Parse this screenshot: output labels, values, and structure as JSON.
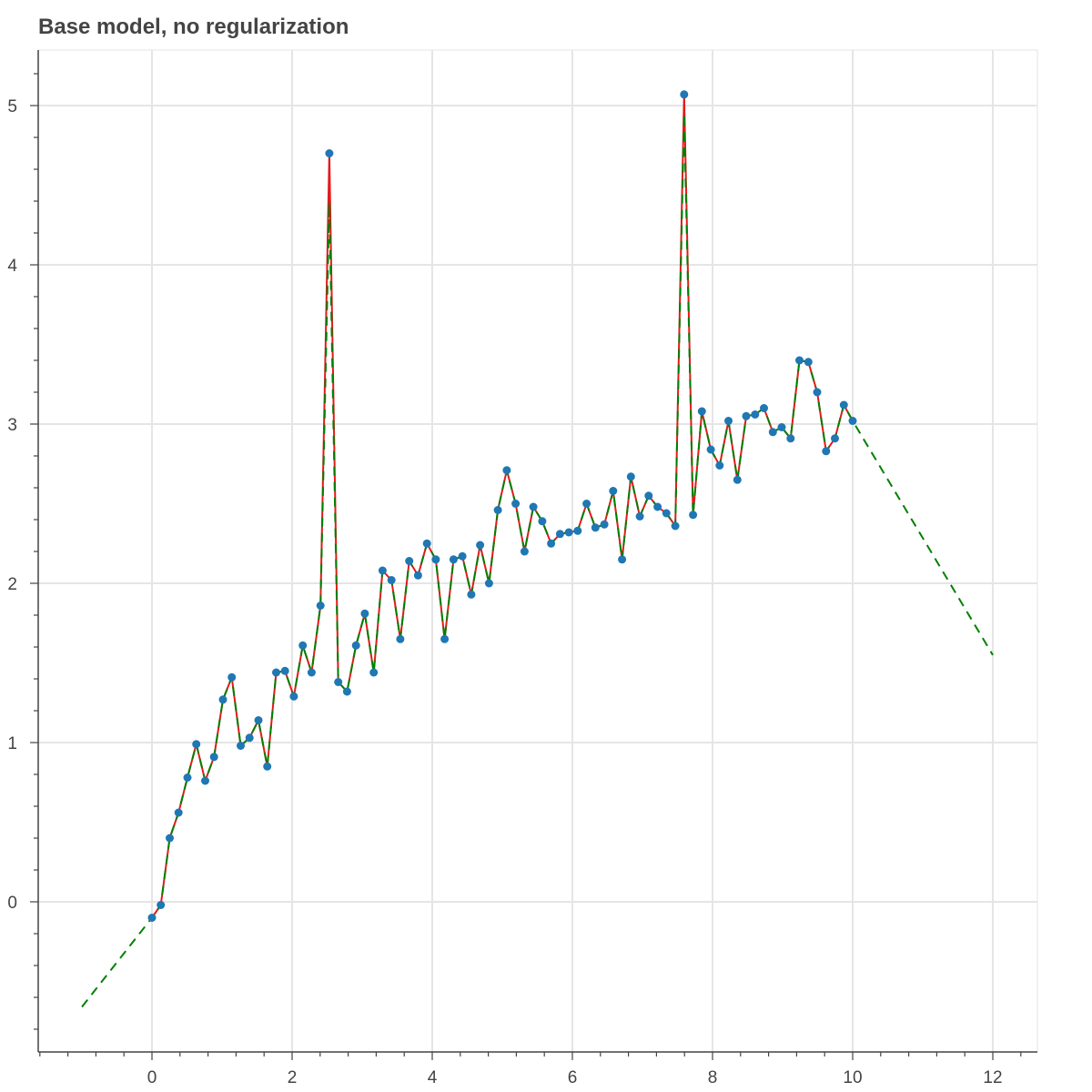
{
  "chart_data": {
    "type": "line",
    "title": "Base model, no regularization",
    "xlabel": "",
    "ylabel": "",
    "xlim": [
      -1.6,
      12.6
    ],
    "ylim": [
      -0.95,
      5.35
    ],
    "grid": true,
    "x_ticks": [
      0,
      2,
      4,
      6,
      8,
      10,
      12
    ],
    "y_ticks": [
      0,
      1,
      2,
      3,
      4,
      5
    ],
    "series": [
      {
        "style": "red solid line with blue circle markers",
        "x": [
          0.0,
          0.1266,
          0.2532,
          0.3797,
          0.5063,
          0.6329,
          0.7595,
          0.8861,
          1.0127,
          1.1392,
          1.2658,
          1.3924,
          1.519,
          1.6456,
          1.7722,
          1.8987,
          2.0253,
          2.1519,
          2.2785,
          2.4051,
          2.5316,
          2.6582,
          2.7848,
          2.9114,
          3.038,
          3.1646,
          3.2911,
          3.4177,
          3.5443,
          3.6709,
          3.7975,
          3.9241,
          4.0506,
          4.1772,
          4.3038,
          4.4304,
          4.557,
          4.6835,
          4.8101,
          4.9367,
          5.0633,
          5.1899,
          5.3165,
          5.443,
          5.5696,
          5.6962,
          5.8228,
          5.9494,
          6.0759,
          6.2025,
          6.3291,
          6.4557,
          6.5823,
          6.7089,
          6.8354,
          6.962,
          7.0886,
          7.2152,
          7.3418,
          7.4684,
          7.5949,
          7.7215,
          7.8481,
          7.9747,
          8.1013,
          8.2278,
          8.3544,
          8.481,
          8.6076,
          8.7342,
          8.8608,
          8.9873,
          9.1139,
          9.2405,
          9.3671,
          9.4937,
          9.6203,
          9.7468,
          9.8734,
          10.0
        ],
        "values": [
          -0.1,
          -0.02,
          0.4,
          0.56,
          0.78,
          0.99,
          0.76,
          0.91,
          1.27,
          1.41,
          0.98,
          1.03,
          1.14,
          0.85,
          1.44,
          1.45,
          1.29,
          1.61,
          1.44,
          1.86,
          4.7,
          1.38,
          1.32,
          1.61,
          1.81,
          1.44,
          2.08,
          2.02,
          1.65,
          2.14,
          2.05,
          2.25,
          2.15,
          1.65,
          2.15,
          2.17,
          1.93,
          2.24,
          2.0,
          2.46,
          2.71,
          2.5,
          2.2,
          2.48,
          2.39,
          2.25,
          2.31,
          2.32,
          2.33,
          2.5,
          2.35,
          2.37,
          2.58,
          2.15,
          2.67,
          2.42,
          2.55,
          2.48,
          2.44,
          2.36,
          5.07,
          2.43,
          3.08,
          2.84,
          2.74,
          3.02,
          2.65,
          3.05,
          3.06,
          3.1,
          2.95,
          2.98,
          2.91,
          3.4,
          3.39,
          3.2,
          2.83,
          2.91,
          3.12,
          3.02
        ],
        "color": "#e31a1c",
        "marker_color": "#1f77b4"
      },
      {
        "style": "green dashed line",
        "x": [
          -1.0,
          0.0,
          0.1266,
          0.2532,
          0.3797,
          0.5063,
          0.6329,
          0.7595,
          0.8861,
          1.0127,
          1.1392,
          1.2658,
          1.3924,
          1.519,
          1.6456,
          1.7722,
          1.8987,
          2.0253,
          2.1519,
          2.2785,
          2.4051,
          2.5316,
          2.6582,
          2.7848,
          2.9114,
          3.038,
          3.1646,
          3.2911,
          3.4177,
          3.5443,
          3.6709,
          3.7975,
          3.9241,
          4.0506,
          4.1772,
          4.3038,
          4.4304,
          4.557,
          4.6835,
          4.8101,
          4.9367,
          5.0633,
          5.1899,
          5.3165,
          5.443,
          5.5696,
          5.6962,
          5.8228,
          5.9494,
          6.0759,
          6.2025,
          6.3291,
          6.4557,
          6.5823,
          6.7089,
          6.8354,
          6.962,
          7.0886,
          7.2152,
          7.3418,
          7.4684,
          7.5949,
          7.7215,
          7.8481,
          7.9747,
          8.1013,
          8.2278,
          8.3544,
          8.481,
          8.6076,
          8.7342,
          8.8608,
          8.9873,
          9.1139,
          9.2405,
          9.3671,
          9.4937,
          9.6203,
          9.7468,
          9.8734,
          10.0,
          12.0
        ],
        "values": [
          -0.66,
          -0.1,
          -0.02,
          0.4,
          0.56,
          0.78,
          0.99,
          0.76,
          0.91,
          1.27,
          1.41,
          0.98,
          1.03,
          1.14,
          0.85,
          1.44,
          1.45,
          1.29,
          1.61,
          1.44,
          1.86,
          4.39,
          1.38,
          1.32,
          1.61,
          1.81,
          1.44,
          2.08,
          2.02,
          1.65,
          2.14,
          2.05,
          2.25,
          2.15,
          1.65,
          2.15,
          2.17,
          1.93,
          2.24,
          2.0,
          2.46,
          2.71,
          2.5,
          2.2,
          2.48,
          2.39,
          2.25,
          2.31,
          2.32,
          2.33,
          2.5,
          2.35,
          2.37,
          2.58,
          2.15,
          2.67,
          2.42,
          2.55,
          2.48,
          2.44,
          2.36,
          4.95,
          2.43,
          3.08,
          2.84,
          2.74,
          3.02,
          2.65,
          3.05,
          3.06,
          3.1,
          2.95,
          2.98,
          2.91,
          3.4,
          3.39,
          3.2,
          2.83,
          2.91,
          3.12,
          3.02,
          1.55
        ],
        "color": "#008000"
      }
    ]
  },
  "colors": {
    "grid": "#e5e5e5",
    "axis": "#444444",
    "red_line": "#e31a1c",
    "green_dashed": "#008000",
    "markers": "#1f77b4"
  }
}
